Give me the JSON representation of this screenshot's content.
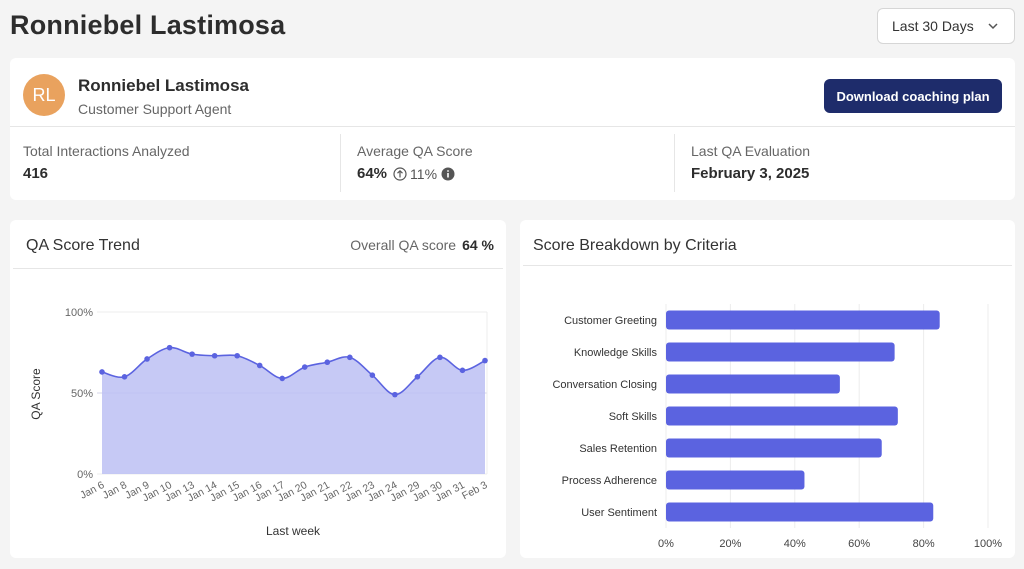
{
  "header": {
    "title": "Ronniebel Lastimosa",
    "date_range": "Last 30 Days"
  },
  "profile": {
    "initials": "RL",
    "name": "Ronniebel Lastimosa",
    "role": "Customer Support Agent",
    "download_label": "Download coaching plan",
    "avatar_color": "#e9a25e",
    "button_color": "#1e2c6b"
  },
  "stats": [
    {
      "label": "Total Interactions Analyzed",
      "value": "416"
    },
    {
      "label": "Average QA Score",
      "value": "64%",
      "change": "11%",
      "change_icon": "arrow-up-circle-icon",
      "info_icon": "info-icon"
    },
    {
      "label": "Last QA Evaluation",
      "value": "February 3, 2025"
    }
  ],
  "trend": {
    "title": "QA Score Trend",
    "overall_label": "Overall QA score",
    "overall_value": "64 %"
  },
  "breakdown": {
    "title": "Score Breakdown by Criteria"
  },
  "chart_data": [
    {
      "type": "area",
      "title": "QA Score Trend",
      "xlabel": "Last week",
      "ylabel": "QA Score",
      "ylim": [
        0,
        100
      ],
      "y_ticks": [
        "0%",
        "50%",
        "100%"
      ],
      "categories": [
        "Jan 6",
        "Jan 8",
        "Jan 9",
        "Jan 10",
        "Jan 13",
        "Jan 14",
        "Jan 15",
        "Jan 16",
        "Jan 17",
        "Jan 20",
        "Jan 21",
        "Jan 22",
        "Jan 23",
        "Jan 24",
        "Jan 29",
        "Jan 30",
        "Jan 31",
        "Feb 3"
      ],
      "values": [
        63,
        60,
        71,
        78,
        74,
        73,
        73,
        67,
        59,
        66,
        69,
        72,
        61,
        49,
        60,
        72,
        64,
        70
      ],
      "color": "#5b63e0",
      "fill": "#bcc0f3",
      "grid": true
    },
    {
      "type": "bar",
      "orientation": "horizontal",
      "title": "Score Breakdown by Criteria",
      "categories": [
        "Customer Greeting",
        "Knowledge Skills",
        "Conversation Closing",
        "Soft Skills",
        "Sales Retention",
        "Process Adherence",
        "User Sentiment"
      ],
      "values": [
        85,
        71,
        54,
        72,
        67,
        43,
        83
      ],
      "xlim": [
        0,
        100
      ],
      "x_ticks": [
        "0%",
        "20%",
        "40%",
        "60%",
        "80%",
        "100%"
      ],
      "color": "#5b63e0",
      "grid": true
    }
  ]
}
